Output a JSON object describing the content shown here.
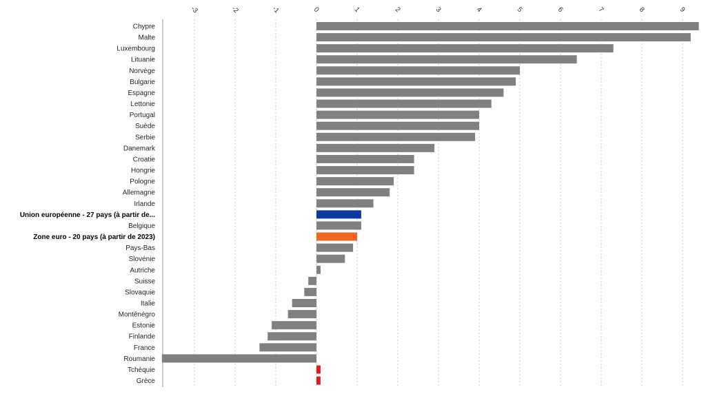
{
  "chart_data": {
    "type": "bar",
    "orientation": "horizontal",
    "xlim": [
      -3.8,
      9.4
    ],
    "ticks": [
      -3,
      -2,
      -1,
      0,
      1,
      2,
      3,
      4,
      5,
      6,
      7,
      8,
      9
    ],
    "grid": true,
    "colors": {
      "default": "#808080",
      "Union européenne - 27 pays (à partir de...": "#0a3a9e",
      "Zone euro - 20 pays (à partir de 2023)": "#f26522",
      "Tchéquie": "#e3191c",
      "Grèce": "#e3191c"
    },
    "bold_categories": [
      "Union européenne - 27 pays (à partir de...",
      "Zone euro - 20 pays (à partir de 2023)"
    ],
    "categories": [
      "Chypre",
      "Malte",
      "Luxembourg",
      "Lituanie",
      "Norvège",
      "Bulgarie",
      "Espagne",
      "Lettonie",
      "Portugal",
      "Suède",
      "Serbie",
      "Danemark",
      "Croatie",
      "Hongrie",
      "Pologne",
      "Allemagne",
      "Irlande",
      "Union européenne - 27 pays (à partir de...",
      "Belgique",
      "Zone euro - 20 pays (à partir de 2023)",
      "Pays-Bas",
      "Slovénie",
      "Autriche",
      "Suisse",
      "Slovaquie",
      "Italie",
      "Monténégro",
      "Estonie",
      "Finlande",
      "France",
      "Roumanie",
      "Tchéquie",
      "Grèce"
    ],
    "values": [
      9.4,
      9.2,
      7.3,
      6.4,
      5.0,
      4.9,
      4.6,
      4.3,
      4.0,
      4.0,
      3.9,
      2.9,
      2.4,
      2.4,
      1.9,
      1.8,
      1.4,
      1.1,
      1.1,
      1.0,
      0.9,
      0.7,
      0.1,
      -0.2,
      -0.3,
      -0.6,
      -0.7,
      -1.1,
      -1.2,
      -1.4,
      -3.8,
      0.1,
      0.1
    ]
  }
}
